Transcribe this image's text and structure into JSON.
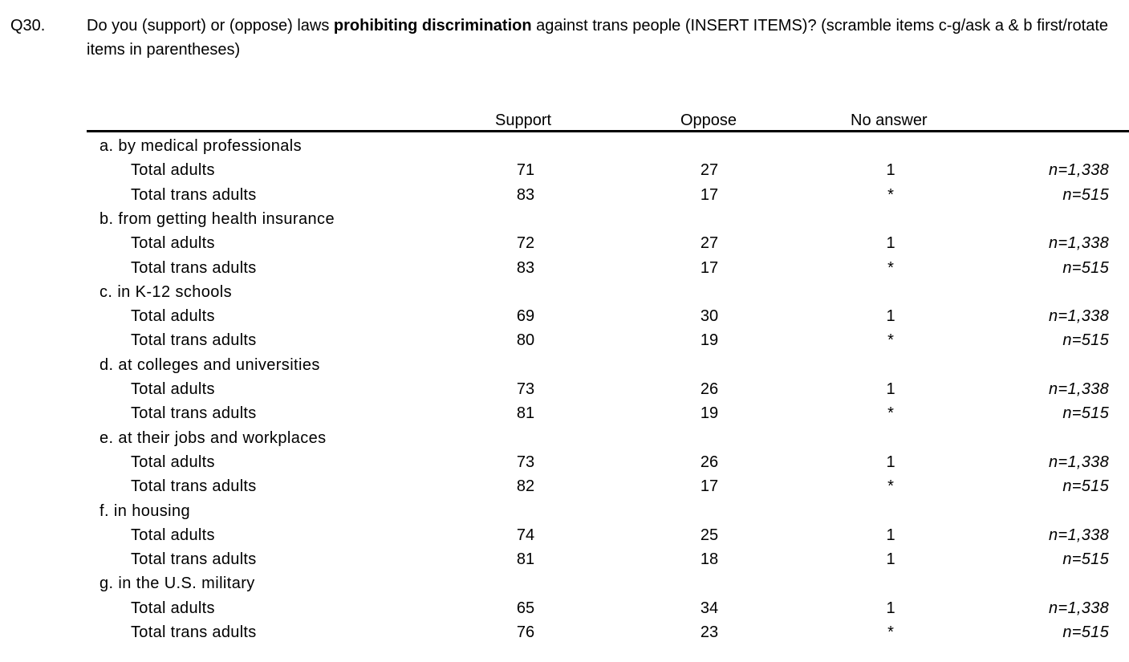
{
  "question": {
    "number": "Q30.",
    "text_before": "Do you (support) or (oppose) laws ",
    "text_bold": "prohibiting discrimination",
    "text_after": " against trans people (INSERT ITEMS)? (scramble items c-g/ask a & b first/rotate items in parentheses)"
  },
  "table": {
    "headers": {
      "support": "Support",
      "oppose": "Oppose",
      "no_answer": "No answer"
    },
    "items": [
      {
        "label": "a. by medical professionals",
        "rows": [
          {
            "group": "Total adults",
            "support": "71",
            "oppose": "27",
            "no_answer": "1",
            "n": "n=1,338"
          },
          {
            "group": "Total trans adults",
            "support": "83",
            "oppose": "17",
            "no_answer": "*",
            "n": "n=515"
          }
        ]
      },
      {
        "label": "b. from getting health insurance",
        "rows": [
          {
            "group": "Total adults",
            "support": "72",
            "oppose": "27",
            "no_answer": "1",
            "n": "n=1,338"
          },
          {
            "group": "Total trans adults",
            "support": "83",
            "oppose": "17",
            "no_answer": "*",
            "n": "n=515"
          }
        ]
      },
      {
        "label": "c. in K-12 schools",
        "rows": [
          {
            "group": "Total adults",
            "support": "69",
            "oppose": "30",
            "no_answer": "1",
            "n": "n=1,338"
          },
          {
            "group": "Total trans adults",
            "support": "80",
            "oppose": "19",
            "no_answer": "*",
            "n": "n=515"
          }
        ]
      },
      {
        "label": "d. at colleges and universities",
        "rows": [
          {
            "group": "Total adults",
            "support": "73",
            "oppose": "26",
            "no_answer": "1",
            "n": "n=1,338"
          },
          {
            "group": "Total trans adults",
            "support": "81",
            "oppose": "19",
            "no_answer": "*",
            "n": "n=515"
          }
        ]
      },
      {
        "label": "e. at their jobs and workplaces",
        "rows": [
          {
            "group": "Total adults",
            "support": "73",
            "oppose": "26",
            "no_answer": "1",
            "n": "n=1,338"
          },
          {
            "group": "Total trans adults",
            "support": "82",
            "oppose": "17",
            "no_answer": "*",
            "n": "n=515"
          }
        ]
      },
      {
        "label": "f. in housing",
        "rows": [
          {
            "group": "Total adults",
            "support": "74",
            "oppose": "25",
            "no_answer": "1",
            "n": "n=1,338"
          },
          {
            "group": "Total trans adults",
            "support": "81",
            "oppose": "18",
            "no_answer": "1",
            "n": "n=515"
          }
        ]
      },
      {
        "label": "g. in the U.S. military",
        "rows": [
          {
            "group": "Total adults",
            "support": "65",
            "oppose": "34",
            "no_answer": "1",
            "n": "n=1,338"
          },
          {
            "group": "Total trans adults",
            "support": "76",
            "oppose": "23",
            "no_answer": "*",
            "n": "n=515"
          }
        ]
      }
    ]
  }
}
